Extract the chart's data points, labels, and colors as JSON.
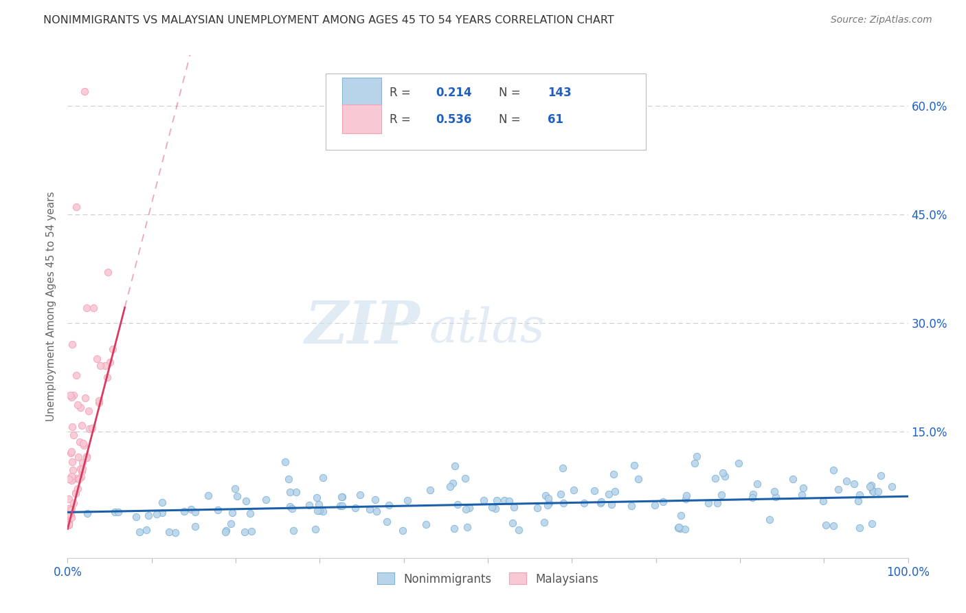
{
  "title": "NONIMMIGRANTS VS MALAYSIAN UNEMPLOYMENT AMONG AGES 45 TO 54 YEARS CORRELATION CHART",
  "source": "Source: ZipAtlas.com",
  "ylabel": "Unemployment Among Ages 45 to 54 years",
  "xlim": [
    0.0,
    1.0
  ],
  "ylim": [
    -0.025,
    0.67
  ],
  "yticks": [
    0.0,
    0.15,
    0.3,
    0.45,
    0.6
  ],
  "ytick_labels": [
    "",
    "15.0%",
    "30.0%",
    "45.0%",
    "60.0%"
  ],
  "xticks": [
    0.0,
    0.1,
    0.2,
    0.3,
    0.4,
    0.5,
    0.6,
    0.7,
    0.8,
    0.9,
    1.0
  ],
  "xtick_labels": [
    "0.0%",
    "",
    "",
    "",
    "",
    "",
    "",
    "",
    "",
    "",
    "100.0%"
  ],
  "blue_edge_color": "#7fb3d8",
  "pink_edge_color": "#f4a0b5",
  "blue_line_color": "#1a5fa8",
  "pink_line_color": "#d63b5e",
  "blue_dot_color": "#b8d4ea",
  "pink_dot_color": "#f8c8d4",
  "R_blue": 0.214,
  "N_blue": 143,
  "R_pink": 0.536,
  "N_pink": 61,
  "legend_blue": "Nonimmigrants",
  "legend_pink": "Malaysians",
  "watermark": "ZIPatlas",
  "title_color": "#333333",
  "axis_label_color": "#666666",
  "tick_color": "#2060c0",
  "grid_color": "#cccccc",
  "legend_text_color": "#2060c0"
}
